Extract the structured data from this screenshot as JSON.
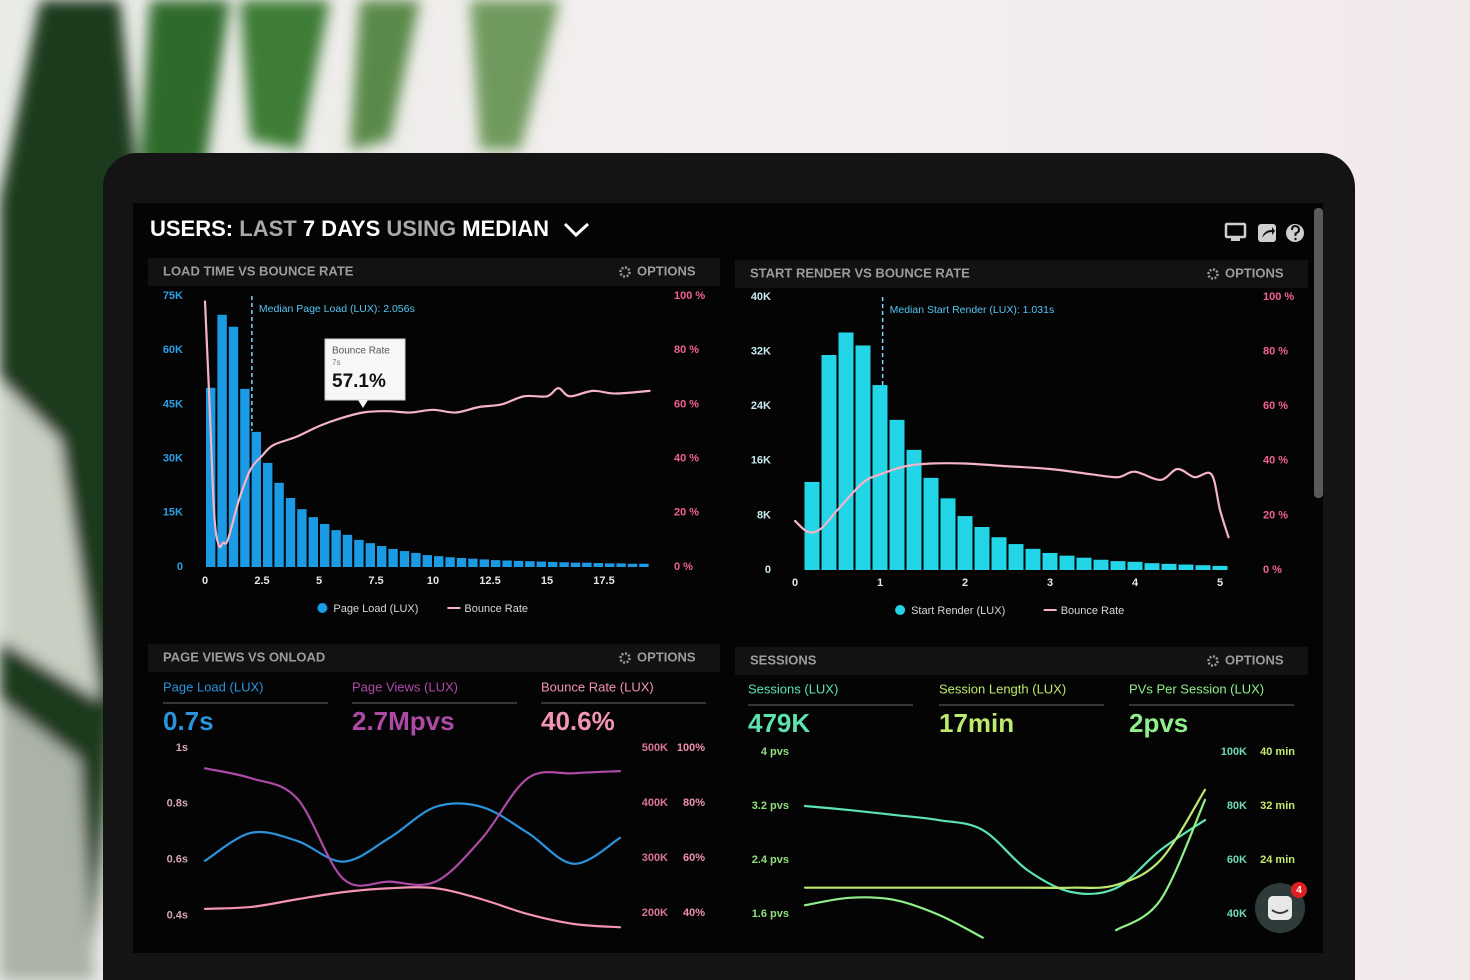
{
  "header": {
    "title_parts": [
      "USERS:",
      "LAST",
      "7 DAYS",
      "USING",
      "MEDIAN"
    ]
  },
  "panel_action": "OPTIONS",
  "chat_badge": "4",
  "chart_data": [
    {
      "type": "histogram",
      "title": "LOAD TIME VS BOUNCE RATE",
      "annotation": {
        "text": "Median Page Load (LUX): 2.056s",
        "x": 2.056
      },
      "tooltip": {
        "title": "Bounce Rate",
        "x_label": "7s",
        "value_label": "57.1%"
      },
      "bins": [
        0,
        0.5,
        1,
        1.5,
        2,
        2.5,
        3,
        3.5,
        4,
        4.5,
        5,
        5.5,
        6,
        6.5,
        7,
        7.5,
        8,
        8.5,
        9,
        9.5,
        10,
        10.5,
        11,
        11.5,
        12,
        12.5,
        13,
        13.5,
        14,
        14.5,
        15,
        15.5,
        16,
        16.5,
        17,
        17.5,
        18,
        18.5,
        19,
        19.5
      ],
      "series": [
        {
          "name": "Page Load (LUX)",
          "color": "#1b9be6",
          "values": [
            49600,
            69800,
            66500,
            49300,
            37400,
            28800,
            23300,
            19100,
            16000,
            13800,
            11900,
            10200,
            8900,
            7500,
            6600,
            5800,
            5000,
            4400,
            3900,
            3300,
            3000,
            2700,
            2500,
            2300,
            2100,
            1900,
            1800,
            1700,
            1600,
            1500,
            1400,
            1300,
            1200,
            1200,
            1100,
            1000,
            1000,
            900,
            900
          ]
        },
        {
          "name": "Bounce Rate",
          "color": "#f5b3c8",
          "type": "line",
          "axis": "y2",
          "x": [
            0,
            0.2,
            0.4,
            0.6,
            0.8,
            1,
            1.5,
            2,
            2.5,
            3,
            4,
            5,
            6,
            7,
            8,
            9,
            10,
            11,
            12,
            13,
            14,
            15,
            15.5,
            16,
            17,
            18,
            19.5
          ],
          "values": [
            98,
            60,
            20,
            8,
            9,
            10,
            25,
            36,
            41,
            45,
            48,
            52,
            55,
            57.1,
            57.5,
            57,
            58,
            57,
            59,
            60,
            63,
            63,
            66,
            63,
            65,
            64,
            65
          ]
        }
      ],
      "xlim": [
        0,
        20
      ],
      "xticks": [
        0,
        2.5,
        5,
        7.5,
        10,
        12.5,
        15,
        17.5
      ],
      "ylim": [
        0,
        75000
      ],
      "yticks": [
        0,
        {
          "value": 15000,
          "label": "15K"
        },
        {
          "value": 30000,
          "label": "30K"
        },
        {
          "value": 45000,
          "label": "45K"
        },
        {
          "value": 60000,
          "label": "60K"
        },
        {
          "value": 75000,
          "label": "75K"
        }
      ],
      "y2lim": [
        0,
        100
      ],
      "y2ticks": [
        {
          "value": 0,
          "label": "0 %"
        },
        {
          "value": 20,
          "label": "20 %"
        },
        {
          "value": 40,
          "label": "40 %"
        },
        {
          "value": 60,
          "label": "60 %"
        },
        {
          "value": 80,
          "label": "80 %"
        },
        {
          "value": 100,
          "label": "100 %"
        }
      ]
    },
    {
      "type": "histogram",
      "title": "START RENDER VS BOUNCE RATE",
      "annotation": {
        "text": "Median Start Render (LUX): 1.031s",
        "x": 1.031
      },
      "bins": [
        0.1,
        0.3,
        0.5,
        0.7,
        0.9,
        1.1,
        1.3,
        1.5,
        1.7,
        1.9,
        2.1,
        2.3,
        2.5,
        2.7,
        2.9,
        3.1,
        3.3,
        3.5,
        3.7,
        3.9,
        4.1,
        4.3,
        4.5,
        4.7,
        4.9,
        5.1
      ],
      "series": [
        {
          "name": "Start Render (LUX)",
          "color": "#22d6e8",
          "values": [
            12900,
            31500,
            34800,
            32900,
            27100,
            22000,
            17600,
            13500,
            10500,
            7900,
            6300,
            4800,
            3800,
            3100,
            2500,
            2100,
            1800,
            1500,
            1300,
            1200,
            1000,
            900,
            800,
            700,
            600
          ]
        },
        {
          "name": "Bounce Rate",
          "color": "#f5b3c8",
          "type": "line",
          "axis": "y2",
          "x": [
            0,
            0.15,
            0.3,
            0.5,
            0.8,
            1,
            1.3,
            1.6,
            2,
            2.5,
            3,
            3.5,
            3.8,
            4,
            4.3,
            4.5,
            4.7,
            4.9,
            5,
            5.1
          ],
          "values": [
            18,
            14,
            15,
            22,
            32,
            35,
            38,
            39,
            39,
            38,
            37,
            35,
            34,
            36,
            33,
            37,
            34,
            35,
            22,
            12
          ]
        }
      ],
      "xlim": [
        0,
        5.2
      ],
      "xticks": [
        0,
        1,
        2,
        3,
        4,
        5
      ],
      "ylim": [
        0,
        40000
      ],
      "yticks": [
        0,
        {
          "value": 8000,
          "label": "8K"
        },
        {
          "value": 16000,
          "label": "16K"
        },
        {
          "value": 24000,
          "label": "24K"
        },
        {
          "value": 32000,
          "label": "32K"
        },
        {
          "value": 40000,
          "label": "40K"
        }
      ],
      "y2lim": [
        0,
        100
      ],
      "y2ticks": [
        {
          "value": 0,
          "label": "0 %"
        },
        {
          "value": 20,
          "label": "20 %"
        },
        {
          "value": 40,
          "label": "40 %"
        },
        {
          "value": 60,
          "label": "60 %"
        },
        {
          "value": 80,
          "label": "80 %"
        },
        {
          "value": 100,
          "label": "100 %"
        }
      ]
    },
    {
      "type": "line",
      "title": "PAGE VIEWS VS ONLOAD",
      "categories": [
        null,
        null,
        null,
        null,
        null,
        null,
        null,
        null,
        null,
        null
      ],
      "series": [
        {
          "name": "Page Load (LUX)",
          "kpi": "0.7s",
          "color": "#2a93dc",
          "axis": "y",
          "values": [
            0.596,
            0.696,
            0.667,
            0.593,
            0.678,
            0.789,
            0.789,
            0.696,
            0.585,
            0.678
          ]
        },
        {
          "name": "Page Views (LUX)",
          "kpi": "2.7Mpvs",
          "color": "#ad4aa6",
          "axis": "y2",
          "values": [
            463000,
            445000,
            408000,
            262000,
            257000,
            257000,
            335000,
            445000,
            454000,
            458000
          ]
        },
        {
          "name": "Bounce Rate (LUX)",
          "kpi": "40.6%",
          "color": "#f394b2",
          "axis": "y3",
          "values": [
            41.5,
            42.2,
            45,
            47.6,
            49,
            49,
            45,
            39.6,
            36,
            34.8
          ]
        }
      ],
      "ylim": [
        0.33,
        1.0
      ],
      "yticks": [
        {
          "value": 1,
          "label": "1s"
        },
        {
          "value": 0.8,
          "label": "0.8s"
        },
        {
          "value": 0.6,
          "label": "0.6s"
        },
        {
          "value": 0.4,
          "label": "0.4s"
        }
      ],
      "y2lim": [
        160000,
        500000
      ],
      "y2ticks": [
        {
          "value": 500000,
          "label": "500K"
        },
        {
          "value": 400000,
          "label": "400K"
        },
        {
          "value": 300000,
          "label": "300K"
        },
        {
          "value": 200000,
          "label": "200K"
        }
      ],
      "y3lim": [
        32,
        100
      ],
      "y3ticks": [
        {
          "value": 100,
          "label": "100%"
        },
        {
          "value": 80,
          "label": "80%"
        },
        {
          "value": 60,
          "label": "60%"
        },
        {
          "value": 40,
          "label": "40%"
        }
      ]
    },
    {
      "type": "line",
      "title": "SESSIONS",
      "categories": [
        null,
        null,
        null,
        null,
        null,
        null,
        null,
        null,
        null,
        null
      ],
      "series": [
        {
          "name": "Sessions (LUX)",
          "kpi": "479K",
          "color": "#5de3b0",
          "axis": "y2",
          "values": [
            80000,
            78500,
            76700,
            74800,
            71100,
            56300,
            48100,
            49600,
            63700,
            74800
          ]
        },
        {
          "name": "Session Length (LUX)",
          "kpi": "17min",
          "color": "#bde96c",
          "axis": "y3",
          "values": [
            19.9,
            19.9,
            19.9,
            19.9,
            19.9,
            19.9,
            19.9,
            20.3,
            24,
            34.4
          ]
        },
        {
          "name": "PVs Per Session (LUX)",
          "kpi": "2pvs",
          "color": "#8ff08a",
          "axis": "y",
          "values": [
            1.73,
            1.84,
            1.81,
            1.59,
            1.25,
            null,
            null,
            1.36,
            1.81,
            3.29
          ]
        }
      ],
      "ylim": [
        1.2,
        4
      ],
      "yticks": [
        {
          "value": 4,
          "label": "4 pvs"
        },
        {
          "value": 3.2,
          "label": "3.2 pvs"
        },
        {
          "value": 2.4,
          "label": "2.4 pvs"
        },
        {
          "value": 1.6,
          "label": "1.6 pvs"
        }
      ],
      "y2lim": [
        30000,
        100000
      ],
      "y2ticks": [
        {
          "value": 100000,
          "label": "100K"
        },
        {
          "value": 80000,
          "label": "80K"
        },
        {
          "value": 60000,
          "label": "60K"
        },
        {
          "value": 40000,
          "label": "40K"
        }
      ],
      "y3lim": [
        12,
        40
      ],
      "y3ticks": [
        {
          "value": 40,
          "label": "40 min"
        },
        {
          "value": 32,
          "label": "32 min"
        },
        {
          "value": 24,
          "label": "24 min"
        }
      ]
    }
  ]
}
